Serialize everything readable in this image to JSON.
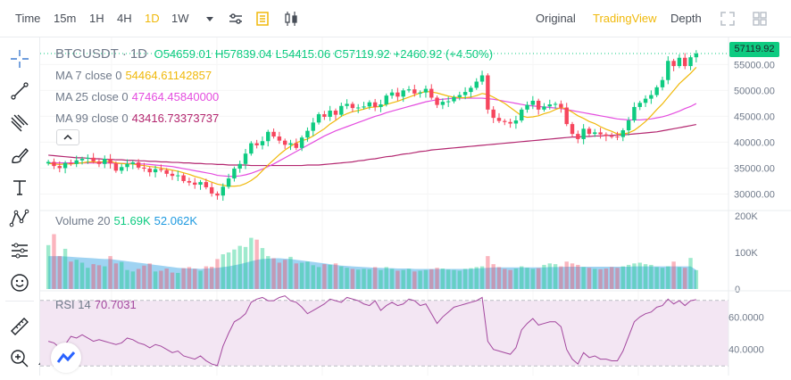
{
  "toolbar": {
    "time_label": "Time",
    "intervals": [
      "15m",
      "1H",
      "4H",
      "1D",
      "1W"
    ],
    "active_interval": "1D",
    "views": [
      "Original",
      "TradingView",
      "Depth"
    ],
    "active_view": "TradingView"
  },
  "legend": {
    "symbol": "BTCUSDT",
    "interval": "1D",
    "open": "O54659.01",
    "high": "H57839.04",
    "low": "L54415.06",
    "close": "C57119.92",
    "change": "+2460.92 (+4.50%)",
    "ma7_label": "MA 7 close 0",
    "ma7_value": "54464.61142857",
    "ma25_label": "MA 25 close 0",
    "ma25_value": "47464.45840000",
    "ma99_label": "MA 99 close 0",
    "ma99_value": "43416.73373737",
    "volume_label": "Volume 20",
    "volume_v1": "51.69K",
    "volume_v2": "52.062K",
    "rsi_label": "RSI 14",
    "rsi_value": "70.7031"
  },
  "price_axis": {
    "last_price": "57119.92",
    "ticks": [
      "55000.00",
      "50000.00",
      "45000.00",
      "40000.00",
      "35000.00",
      "30000.00"
    ]
  },
  "volume_axis": {
    "ticks": [
      "200K",
      "100K",
      "0"
    ]
  },
  "rsi_axis": {
    "ticks": [
      "60.0000",
      "40.0000"
    ]
  },
  "colors": {
    "up": "#0ecb81",
    "down": "#f6465d",
    "ma7": "#f0b90b",
    "ma25": "#e44ddf",
    "ma99": "#b3266f",
    "accent": "#f0b90b",
    "rsi_line": "#a3479e",
    "rsi_fill": "#f3e6f3",
    "volume_ma": "#8ecbf0"
  },
  "chart_data": {
    "type": "candlestick",
    "title": "BTCUSDT · 1D",
    "ylim": [
      27500,
      58500
    ],
    "candle_closes": [
      36200,
      35400,
      35000,
      36000,
      35800,
      36500,
      36800,
      37000,
      36300,
      35800,
      36800,
      35900,
      34500,
      35200,
      35800,
      36100,
      35100,
      34900,
      34200,
      34800,
      34600,
      33900,
      33500,
      33600,
      32500,
      32200,
      31800,
      32300,
      31300,
      30100,
      29700,
      31400,
      33000,
      34900,
      35800,
      37800,
      39800,
      39400,
      40200,
      42000,
      41100,
      40300,
      39500,
      39800,
      38900,
      40900,
      42200,
      43800,
      45400,
      44900,
      46100,
      45300,
      47000,
      47400,
      46600,
      46700,
      46900,
      47700,
      46800,
      47300,
      49000,
      49600,
      48800,
      50000,
      50200,
      49400,
      49600,
      50300,
      48600,
      47200,
      47800,
      47900,
      48700,
      49100,
      49700,
      50500,
      51700,
      52900,
      46300,
      44700,
      44100,
      43900,
      43600,
      44200,
      46300,
      47200,
      48000,
      46300,
      46900,
      47300,
      47400,
      46700,
      43500,
      41600,
      40600,
      42600,
      41600,
      41900,
      41500,
      41200,
      41100,
      41000,
      42300,
      44200,
      46800,
      47600,
      48400,
      49100,
      50600,
      52000,
      55700,
      54700,
      56300,
      54700,
      56400,
      57119.92
    ],
    "ma7": [
      35900,
      35800,
      35700,
      35800,
      35800,
      35900,
      36000,
      36200,
      36200,
      36100,
      36300,
      36300,
      36000,
      35900,
      35800,
      35800,
      35600,
      35500,
      35300,
      35200,
      35000,
      34800,
      34600,
      34400,
      34100,
      33800,
      33400,
      33100,
      32700,
      32300,
      31900,
      31700,
      31500,
      31500,
      31600,
      32000,
      32600,
      33400,
      34500,
      35600,
      36600,
      37600,
      38500,
      39200,
      39900,
      40300,
      40600,
      41200,
      41900,
      42600,
      43500,
      44200,
      45000,
      45500,
      45900,
      46100,
      46400,
      46700,
      46800,
      46900,
      47300,
      47600,
      47900,
      48300,
      48700,
      49100,
      49500,
      49800,
      49700,
      49500,
      49200,
      48900,
      48700,
      48600,
      48600,
      48700,
      49000,
      49400,
      49200,
      48700,
      48100,
      47500,
      46700,
      45900,
      45100,
      44800,
      44900,
      45100,
      45500,
      45800,
      46300,
      46700,
      46400,
      45800,
      45100,
      44600,
      44000,
      43600,
      43000,
      42500,
      42100,
      41600,
      41600,
      41800,
      42300,
      43100,
      44000,
      45100,
      46300,
      47400,
      48700,
      50000,
      51300,
      52300,
      53300,
      54464.61
    ],
    "ma25": [
      36000,
      36000,
      36000,
      36000,
      36000,
      36000,
      36000,
      36000,
      36000,
      36000,
      36000,
      36000,
      35900,
      35900,
      35900,
      35900,
      35800,
      35800,
      35700,
      35600,
      35500,
      35400,
      35300,
      35100,
      34900,
      34700,
      34500,
      34300,
      34100,
      33900,
      33600,
      33500,
      33400,
      33400,
      33500,
      33700,
      34000,
      34400,
      34800,
      35300,
      35800,
      36400,
      37000,
      37600,
      38200,
      38800,
      39400,
      40000,
      40600,
      41200,
      41700,
      42200,
      42600,
      43000,
      43400,
      43800,
      44200,
      44600,
      45000,
      45300,
      45700,
      46000,
      46300,
      46600,
      46900,
      47200,
      47500,
      47800,
      48000,
      48200,
      48300,
      48400,
      48500,
      48500,
      48500,
      48500,
      48500,
      48500,
      48400,
      48300,
      48100,
      47900,
      47700,
      47500,
      47300,
      47100,
      47000,
      46900,
      46800,
      46700,
      46600,
      46500,
      46300,
      46100,
      45900,
      45700,
      45500,
      45300,
      45100,
      44900,
      44700,
      44500,
      44400,
      44300,
      44300,
      44300,
      44400,
      44500,
      44700,
      44900,
      45200,
      45600,
      46000,
      46500,
      46900,
      47464.46
    ],
    "ma99": [
      37500,
      37400,
      37300,
      37200,
      37100,
      37000,
      37000,
      36900,
      36800,
      36800,
      36700,
      36700,
      36600,
      36600,
      36500,
      36500,
      36400,
      36400,
      36300,
      36300,
      36200,
      36200,
      36100,
      36100,
      36000,
      36000,
      35900,
      35900,
      35800,
      35800,
      35700,
      35700,
      35600,
      35600,
      35600,
      35600,
      35500,
      35500,
      35500,
      35500,
      35500,
      35500,
      35500,
      35500,
      35500,
      35500,
      35600,
      35600,
      35600,
      35700,
      35800,
      35900,
      36000,
      36100,
      36200,
      36400,
      36500,
      36700,
      36800,
      37000,
      37200,
      37300,
      37500,
      37700,
      37800,
      38000,
      38200,
      38300,
      38500,
      38600,
      38700,
      38800,
      38900,
      39000,
      39100,
      39200,
      39300,
      39400,
      39500,
      39600,
      39700,
      39800,
      39900,
      40000,
      40100,
      40200,
      40300,
      40400,
      40500,
      40600,
      40700,
      40800,
      40900,
      41000,
      41000,
      41100,
      41100,
      41200,
      41200,
      41300,
      41300,
      41400,
      41400,
      41500,
      41600,
      41700,
      41800,
      41900,
      42000,
      42200,
      42400,
      42600,
      42800,
      43000,
      43200,
      43416.73
    ],
    "volume_ylim": [
      0,
      200000
    ],
    "volume": [
      120000,
      150000,
      90000,
      110000,
      75000,
      80000,
      72000,
      58000,
      68000,
      65000,
      62000,
      90000,
      70000,
      74000,
      52000,
      48000,
      55000,
      64000,
      70000,
      48000,
      50000,
      56000,
      45000,
      44000,
      57000,
      60000,
      55000,
      50000,
      62000,
      61000,
      82000,
      95000,
      100000,
      108000,
      118000,
      115000,
      140000,
      135000,
      112000,
      90000,
      84000,
      72000,
      80000,
      88000,
      70000,
      72000,
      75000,
      65000,
      60000,
      68000,
      66000,
      70000,
      62000,
      58000,
      55000,
      53000,
      55000,
      54000,
      60000,
      52000,
      60000,
      55000,
      50000,
      52000,
      55000,
      48000,
      50000,
      52000,
      54000,
      58000,
      56000,
      53000,
      52000,
      50000,
      55000,
      57000,
      60000,
      62000,
      90000,
      68000,
      60000,
      55000,
      52000,
      56000,
      62000,
      58000,
      55000,
      57000,
      66000,
      70000,
      68000,
      62000,
      75000,
      70000,
      66000,
      60000,
      58000,
      55000,
      54000,
      56000,
      60000,
      58000,
      62000,
      66000,
      70000,
      72000,
      68000,
      66000,
      60000,
      58000,
      62000,
      75000,
      60000,
      58000,
      85000,
      51690
    ],
    "volume_ma": [
      90000,
      90000,
      90000,
      89000,
      88000,
      87000,
      86000,
      85000,
      84000,
      83000,
      82000,
      82000,
      80000,
      78000,
      76000,
      74000,
      72000,
      70000,
      68000,
      66000,
      64000,
      62000,
      60000,
      58000,
      57000,
      56000,
      56000,
      55000,
      56000,
      57000,
      58000,
      60000,
      62000,
      65000,
      68000,
      72000,
      76000,
      80000,
      82000,
      83000,
      84000,
      84000,
      83000,
      82000,
      80000,
      78000,
      76000,
      74000,
      72000,
      70000,
      68000,
      66000,
      64000,
      63000,
      62000,
      61000,
      60000,
      59000,
      58000,
      58000,
      57000,
      57000,
      56000,
      56000,
      56000,
      55000,
      55000,
      55000,
      55000,
      55000,
      55000,
      55000,
      55000,
      55000,
      55000,
      55000,
      56000,
      57000,
      58000,
      59000,
      59000,
      59000,
      59000,
      59000,
      59000,
      59000,
      59000,
      59000,
      59000,
      60000,
      60000,
      60000,
      61000,
      61000,
      61000,
      61000,
      61000,
      61000,
      61000,
      61000,
      61000,
      61000,
      61000,
      61000,
      62000,
      62000,
      62000,
      62000,
      62000,
      62000,
      62000,
      62000,
      62000,
      62000,
      62000,
      52062
    ],
    "rsi_ylim": [
      25,
      75
    ],
    "rsi": [
      45,
      44,
      41,
      43,
      48,
      47,
      49,
      47,
      45,
      46,
      45,
      44,
      43,
      44,
      47,
      46,
      44,
      43,
      41,
      43,
      42,
      40,
      38,
      39,
      36,
      35,
      34,
      36,
      33,
      31,
      30,
      42,
      50,
      57,
      59,
      62,
      69,
      71,
      72,
      70,
      70,
      72,
      73,
      70,
      69,
      66,
      62,
      64,
      66,
      68,
      71,
      70,
      69,
      72,
      71,
      70,
      68,
      67,
      70,
      64,
      67,
      69,
      67,
      68,
      71,
      70,
      67,
      68,
      62,
      56,
      60,
      63,
      66,
      67,
      68,
      69,
      70,
      72,
      45,
      40,
      39,
      38,
      37,
      41,
      52,
      56,
      59,
      55,
      56,
      57,
      57,
      54,
      40,
      34,
      31,
      38,
      35,
      36,
      34,
      34,
      33,
      33,
      39,
      48,
      57,
      60,
      62,
      63,
      66,
      67,
      71,
      68,
      70,
      67,
      70,
      70.7
    ]
  }
}
